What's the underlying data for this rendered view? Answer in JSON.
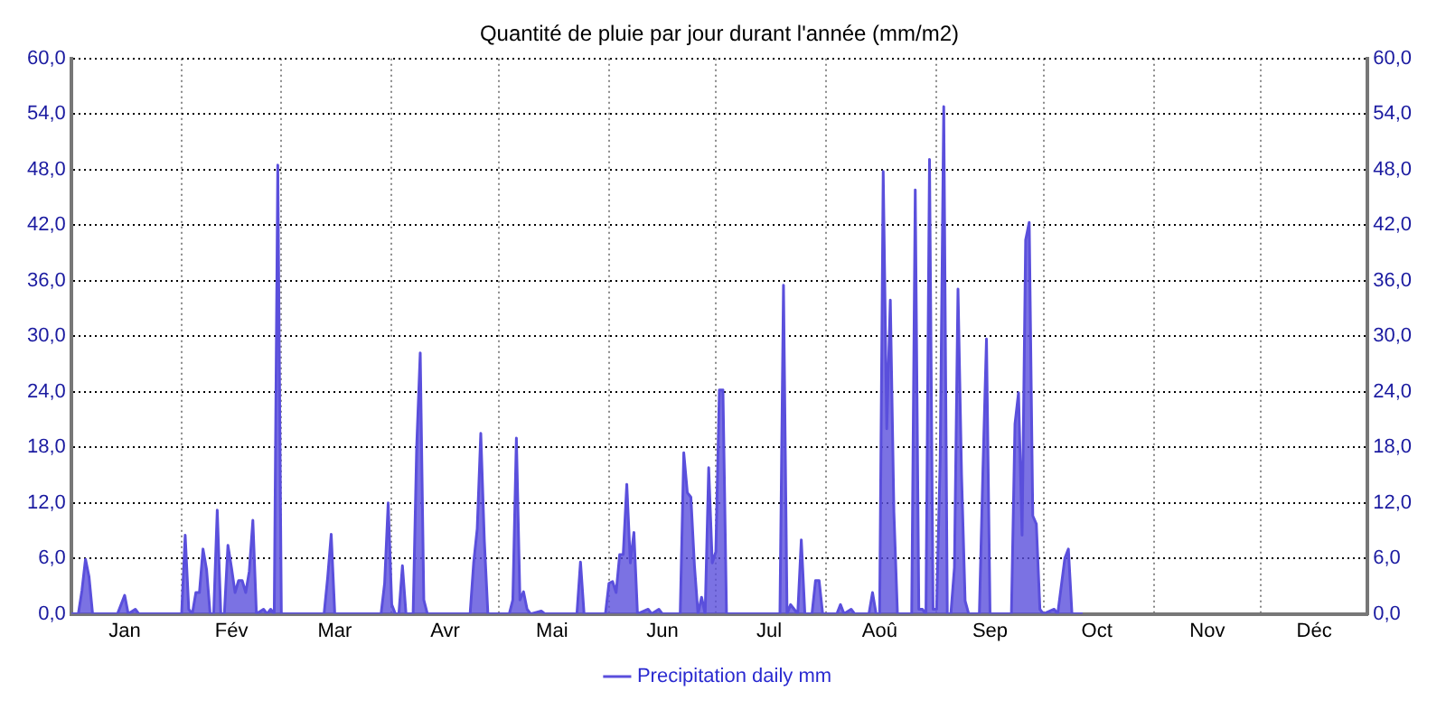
{
  "chart_data": {
    "type": "area",
    "title": "Quantité de pluie par jour durant l'année (mm/m2)",
    "xlim": [
      "--01-01",
      "--12-31"
    ],
    "xticks": [
      {
        "value": "--01-01",
        "label": null
      },
      {
        "value": "--01-16",
        "label": "Jan"
      },
      {
        "value": "--02-01",
        "label": null
      },
      {
        "value": "--02-15",
        "label": "Fév"
      },
      {
        "value": "--03-01",
        "label": null
      },
      {
        "value": "--03-16",
        "label": "Mar"
      },
      {
        "value": "--04-01",
        "label": null
      },
      {
        "value": "--04-16",
        "label": "Avr"
      },
      {
        "value": "--05-01",
        "label": null
      },
      {
        "value": "--05-16",
        "label": "Mai"
      },
      {
        "value": "--06-01",
        "label": null
      },
      {
        "value": "--06-16",
        "label": "Jun"
      },
      {
        "value": "--07-01",
        "label": null
      },
      {
        "value": "--07-16",
        "label": "Jul"
      },
      {
        "value": "--08-01",
        "label": null
      },
      {
        "value": "--08-16",
        "label": "Aoû"
      },
      {
        "value": "--09-01",
        "label": null
      },
      {
        "value": "--09-16",
        "label": "Sep"
      },
      {
        "value": "--10-01",
        "label": null
      },
      {
        "value": "--10-16",
        "label": "Oct"
      },
      {
        "value": "--11-01",
        "label": null
      },
      {
        "value": "--11-16",
        "label": "Nov"
      },
      {
        "value": "--12-01",
        "label": null
      },
      {
        "value": "--12-16",
        "label": "Déc"
      }
    ],
    "ylim": [
      0,
      60
    ],
    "yticks": [
      {
        "value": 0,
        "label": "0,0"
      },
      {
        "value": 6,
        "label": "6,0"
      },
      {
        "value": 12,
        "label": "12,0"
      },
      {
        "value": 18,
        "label": "18,0"
      },
      {
        "value": 24,
        "label": "24,0"
      },
      {
        "value": 30,
        "label": "30,0"
      },
      {
        "value": 36,
        "label": "36,0"
      },
      {
        "value": 42,
        "label": "42,0"
      },
      {
        "value": 48,
        "label": "48,0"
      },
      {
        "value": 54,
        "label": "54,0"
      },
      {
        "value": 60,
        "label": "60,0"
      }
    ],
    "y2lim": [
      0,
      60
    ],
    "y2ticks": [
      {
        "value": 0,
        "label": "0,0"
      },
      {
        "value": 6,
        "label": "6,0"
      },
      {
        "value": 12,
        "label": "12,0"
      },
      {
        "value": 18,
        "label": "18,0"
      },
      {
        "value": 24,
        "label": "24,0"
      },
      {
        "value": 30,
        "label": "30,0"
      },
      {
        "value": 36,
        "label": "36,0"
      },
      {
        "value": 42,
        "label": "42,0"
      },
      {
        "value": 48,
        "label": "48,0"
      },
      {
        "value": 54,
        "label": "54,0"
      },
      {
        "value": 60,
        "label": "60,0"
      }
    ],
    "grid": true,
    "legend": "bottom",
    "marker": "none",
    "line_style": "solid",
    "series": [
      {
        "name": "Precipitation daily mm",
        "color": "#5a4fdc",
        "x": [
          "--01-01",
          "--01-03",
          "--01-04",
          "--01-05",
          "--01-06",
          "--01-07",
          "--01-14",
          "--01-15",
          "--01-16",
          "--01-17",
          "--01-19",
          "--01-20",
          "--02-01",
          "--02-02",
          "--02-03",
          "--02-04",
          "--02-05",
          "--02-06",
          "--02-07",
          "--02-08",
          "--02-09",
          "--02-10",
          "--02-11",
          "--02-12",
          "--02-13",
          "--02-14",
          "--02-15",
          "--02-16",
          "--02-17",
          "--02-18",
          "--02-19",
          "--02-20",
          "--02-21",
          "--02-22",
          "--02-24",
          "--02-25",
          "--02-26",
          "--02-27",
          "--02-28",
          "--03-01",
          "--03-13",
          "--03-14",
          "--03-15",
          "--03-16",
          "--03-29",
          "--03-30",
          "--03-31",
          "--04-01",
          "--04-02",
          "--04-03",
          "--04-04",
          "--04-05",
          "--04-07",
          "--04-08",
          "--04-09",
          "--04-10",
          "--04-11",
          "--04-23",
          "--04-24",
          "--04-25",
          "--04-26",
          "--04-27",
          "--04-28",
          "--05-04",
          "--05-05",
          "--05-06",
          "--05-07",
          "--05-08",
          "--05-09",
          "--05-10",
          "--05-13",
          "--05-14",
          "--05-23",
          "--05-24",
          "--05-25",
          "--05-31",
          "--06-01",
          "--06-02",
          "--06-03",
          "--06-04",
          "--06-05",
          "--06-06",
          "--06-07",
          "--06-08",
          "--06-09",
          "--06-12",
          "--06-13",
          "--06-15",
          "--06-16",
          "--06-21",
          "--06-22",
          "--06-23",
          "--06-24",
          "--06-25",
          "--06-26",
          "--06-27",
          "--06-28",
          "--06-29",
          "--06-30",
          "--07-01",
          "--07-02",
          "--07-03",
          "--07-04",
          "--07-19",
          "--07-20",
          "--07-21",
          "--07-22",
          "--07-23",
          "--07-24",
          "--07-25",
          "--07-26",
          "--07-28",
          "--07-29",
          "--07-30",
          "--07-31",
          "--08-04",
          "--08-05",
          "--08-06",
          "--08-08",
          "--08-09",
          "--08-13",
          "--08-14",
          "--08-15",
          "--08-16",
          "--08-17",
          "--08-18",
          "--08-19",
          "--08-20",
          "--08-21",
          "--08-25",
          "--08-26",
          "--08-27",
          "--08-28",
          "--08-29",
          "--08-30",
          "--08-31",
          "--09-01",
          "--09-02",
          "--09-03",
          "--09-04",
          "--09-05",
          "--09-06",
          "--09-07",
          "--09-08",
          "--09-09",
          "--09-10",
          "--09-13",
          "--09-14",
          "--09-15",
          "--09-16",
          "--09-22",
          "--09-23",
          "--09-24",
          "--09-25",
          "--09-26",
          "--09-27",
          "--09-28",
          "--09-29",
          "--09-30",
          "--10-01",
          "--10-04",
          "--10-05",
          "--10-07",
          "--10-08",
          "--10-09",
          "--10-12"
        ],
        "values": [
          0,
          0,
          2.5,
          5.9,
          4,
          0,
          0,
          1,
          2,
          0,
          0.5,
          0,
          0,
          8.5,
          0.5,
          0,
          2.3,
          2.3,
          7,
          4.8,
          0,
          0,
          11.2,
          0,
          0,
          7.4,
          5,
          2.3,
          3.6,
          3.6,
          2.3,
          4.6,
          10.1,
          0,
          0.5,
          0,
          0.5,
          0,
          48.5,
          0,
          0,
          3.9,
          8.6,
          0,
          0,
          3.3,
          12,
          1,
          0,
          0,
          5.2,
          0,
          0,
          18,
          28.2,
          1.5,
          0,
          0,
          5.5,
          9.2,
          19.5,
          7.9,
          0,
          0,
          1.5,
          19,
          1.5,
          2.4,
          0.5,
          0,
          0.3,
          0,
          0,
          5.6,
          0,
          0,
          3.3,
          3.5,
          2.3,
          6.4,
          6.4,
          14,
          5.5,
          8.8,
          0,
          0.5,
          0,
          0.5,
          0,
          0,
          17.4,
          13.1,
          12.6,
          5.2,
          0,
          1.8,
          0,
          15.8,
          5.5,
          6.7,
          24.2,
          24.2,
          0,
          0,
          35.5,
          0,
          1,
          0.5,
          0,
          8,
          0,
          0,
          3.6,
          3.6,
          0,
          0,
          1,
          0,
          0.5,
          0,
          0,
          2.3,
          0,
          0,
          47.8,
          20,
          33.9,
          11,
          0,
          0,
          45.8,
          0.5,
          0.5,
          0,
          49.1,
          0.5,
          0.5,
          16.8,
          54.8,
          0,
          0,
          5,
          35.1,
          15,
          1.4,
          0,
          0,
          15.5,
          29.7,
          0,
          0,
          20.5,
          23.9,
          8.5,
          40.4,
          42.3,
          10.6,
          9.7,
          0.5,
          0,
          0.5,
          0,
          6,
          7,
          0,
          0
        ]
      }
    ]
  }
}
